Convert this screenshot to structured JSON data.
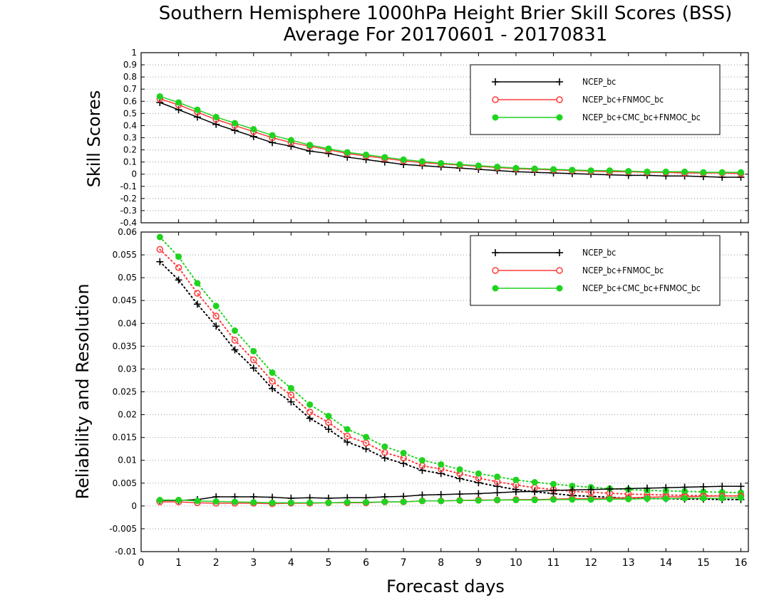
{
  "title_line1": "Southern Hemisphere 1000hPa Height Brier Skill Scores (BSS)",
  "title_line2": "Average For 20170601 - 20170831",
  "xlabel": "Forecast days",
  "chart_data": [
    {
      "type": "line",
      "ylabel": "Skill Scores",
      "xlim": [
        0,
        16.2
      ],
      "ylim": [
        -0.4,
        1
      ],
      "x_ticks": [
        0,
        1,
        2,
        3,
        4,
        5,
        6,
        7,
        8,
        9,
        10,
        11,
        12,
        13,
        14,
        15,
        16
      ],
      "y_ticks": [
        -0.4,
        -0.3,
        -0.2,
        -0.1,
        0,
        0.1,
        0.2,
        0.3,
        0.4,
        0.5,
        0.6,
        0.7,
        0.8,
        0.9,
        1
      ],
      "y_tick_labels": [
        "-0.4",
        "-0.3",
        "-0.2",
        "-0.1",
        "0",
        "0.1",
        "0.2",
        "0.3",
        "0.4",
        "0.5",
        "0.6",
        "0.7",
        "0.8",
        "0.9",
        "1"
      ],
      "grid": "horizontal dotted",
      "legend_position": "top-right",
      "x": [
        0.5,
        1,
        1.5,
        2,
        2.5,
        3,
        3.5,
        4,
        4.5,
        5,
        5.5,
        6,
        6.5,
        7,
        7.5,
        8,
        8.5,
        9,
        9.5,
        10,
        10.5,
        11,
        11.5,
        12,
        12.5,
        13,
        13.5,
        14,
        14.5,
        15,
        15.5,
        16
      ],
      "series": [
        {
          "name": "NCEP_bc",
          "color": "#000000",
          "marker": "plus",
          "line": "solid",
          "values": [
            0.59,
            0.53,
            0.47,
            0.41,
            0.36,
            0.31,
            0.26,
            0.23,
            0.19,
            0.17,
            0.14,
            0.12,
            0.1,
            0.08,
            0.07,
            0.06,
            0.05,
            0.04,
            0.03,
            0.02,
            0.015,
            0.01,
            0.005,
            0.0,
            -0.005,
            -0.01,
            -0.01,
            -0.015,
            -0.015,
            -0.02,
            -0.025,
            -0.025
          ]
        },
        {
          "name": "NCEP_bc+FNMOC_bc",
          "color": "#ff3a3a",
          "marker": "open-circle",
          "line": "solid",
          "values": [
            0.62,
            0.57,
            0.51,
            0.45,
            0.4,
            0.35,
            0.3,
            0.26,
            0.23,
            0.2,
            0.17,
            0.15,
            0.13,
            0.11,
            0.095,
            0.085,
            0.075,
            0.065,
            0.055,
            0.045,
            0.04,
            0.035,
            0.03,
            0.025,
            0.02,
            0.02,
            0.015,
            0.015,
            0.01,
            0.01,
            0.01,
            0.005
          ]
        },
        {
          "name": "NCEP_bc+CMC_bc+FNMOC_bc",
          "color": "#1fd31f",
          "marker": "filled-circle",
          "line": "solid",
          "values": [
            0.64,
            0.59,
            0.53,
            0.47,
            0.42,
            0.37,
            0.32,
            0.28,
            0.24,
            0.21,
            0.18,
            0.16,
            0.14,
            0.12,
            0.105,
            0.09,
            0.08,
            0.07,
            0.06,
            0.05,
            0.045,
            0.04,
            0.035,
            0.03,
            0.03,
            0.025,
            0.02,
            0.02,
            0.02,
            0.015,
            0.015,
            0.015
          ]
        }
      ]
    },
    {
      "type": "line",
      "ylabel": "Reliability and Resolution",
      "xlim": [
        0,
        16.2
      ],
      "ylim": [
        -0.01,
        0.06
      ],
      "x_ticks": [
        0,
        1,
        2,
        3,
        4,
        5,
        6,
        7,
        8,
        9,
        10,
        11,
        12,
        13,
        14,
        15,
        16
      ],
      "y_ticks": [
        -0.01,
        -0.005,
        0,
        0.005,
        0.01,
        0.015,
        0.02,
        0.025,
        0.03,
        0.035,
        0.04,
        0.045,
        0.05,
        0.055,
        0.06
      ],
      "y_tick_labels": [
        "-0.01",
        "-0.005",
        "0",
        "0.005",
        "0.01",
        "0.015",
        "0.02",
        "0.025",
        "0.03",
        "0.035",
        "0.04",
        "0.045",
        "0.05",
        "0.055",
        "0.06"
      ],
      "grid": "horizontal dotted",
      "legend_position": "top-right",
      "x": [
        0.5,
        1,
        1.5,
        2,
        2.5,
        3,
        3.5,
        4,
        4.5,
        5,
        5.5,
        6,
        6.5,
        7,
        7.5,
        8,
        8.5,
        9,
        9.5,
        10,
        10.5,
        11,
        11.5,
        12,
        12.5,
        13,
        13.5,
        14,
        14.5,
        15,
        15.5,
        16
      ],
      "series": [
        {
          "name": "NCEP_bc",
          "color": "#000000",
          "marker": "plus",
          "line": "dotted",
          "metric": "resolution",
          "values": [
            0.0535,
            0.0495,
            0.0442,
            0.0394,
            0.0342,
            0.0302,
            0.0257,
            0.0228,
            0.0192,
            0.0168,
            0.014,
            0.0125,
            0.0105,
            0.0093,
            0.0078,
            0.0071,
            0.006,
            0.0051,
            0.0043,
            0.0036,
            0.0031,
            0.0027,
            0.0023,
            0.0021,
            0.0019,
            0.0017,
            0.0016,
            0.0016,
            0.0015,
            0.0015,
            0.0014,
            0.0014
          ]
        },
        {
          "name": "NCEP_bc+FNMOC_bc",
          "color": "#ff3a3a",
          "marker": "open-circle",
          "line": "dotted",
          "metric": "resolution",
          "values": [
            0.0562,
            0.0522,
            0.0466,
            0.0416,
            0.0363,
            0.032,
            0.0273,
            0.0243,
            0.0206,
            0.0183,
            0.0153,
            0.0138,
            0.0117,
            0.0105,
            0.0088,
            0.0081,
            0.0071,
            0.0061,
            0.0053,
            0.0046,
            0.004,
            0.0036,
            0.0032,
            0.003,
            0.0028,
            0.0026,
            0.0025,
            0.0024,
            0.0023,
            0.0023,
            0.0022,
            0.0022
          ]
        },
        {
          "name": "NCEP_bc+CMC_bc+FNMOC_bc",
          "color": "#1fd31f",
          "marker": "filled-circle",
          "line": "dotted",
          "metric": "resolution",
          "values": [
            0.0589,
            0.0546,
            0.0488,
            0.0438,
            0.0384,
            0.0339,
            0.0292,
            0.0258,
            0.0222,
            0.0197,
            0.0168,
            0.0151,
            0.013,
            0.0116,
            0.01,
            0.0091,
            0.008,
            0.0071,
            0.0064,
            0.0057,
            0.0052,
            0.0048,
            0.0044,
            0.0041,
            0.0038,
            0.0036,
            0.0034,
            0.0033,
            0.0032,
            0.0031,
            0.003,
            0.0029
          ]
        },
        {
          "name": "NCEP_bc",
          "color": "#000000",
          "marker": "plus",
          "line": "solid",
          "metric": "reliability",
          "values": [
            0.0012,
            0.0012,
            0.0014,
            0.002,
            0.002,
            0.002,
            0.0019,
            0.0017,
            0.0018,
            0.0017,
            0.0018,
            0.0018,
            0.002,
            0.0021,
            0.0024,
            0.0025,
            0.0026,
            0.0027,
            0.0029,
            0.0031,
            0.0032,
            0.0034,
            0.0035,
            0.0036,
            0.0037,
            0.0038,
            0.0039,
            0.004,
            0.0041,
            0.0042,
            0.0043,
            0.0043
          ]
        },
        {
          "name": "NCEP_bc+FNMOC_bc",
          "color": "#ff3a3a",
          "marker": "open-circle",
          "line": "solid",
          "metric": "reliability",
          "values": [
            0.0009,
            0.0009,
            0.0007,
            0.0006,
            0.0006,
            0.0006,
            0.0005,
            0.0006,
            0.0006,
            0.0007,
            0.0007,
            0.0007,
            0.0009,
            0.0009,
            0.0011,
            0.0011,
            0.0012,
            0.0013,
            0.0013,
            0.0014,
            0.0014,
            0.0015,
            0.0016,
            0.0016,
            0.0017,
            0.0018,
            0.0019,
            0.002,
            0.002,
            0.0021,
            0.0022,
            0.0022
          ]
        },
        {
          "name": "NCEP_bc+CMC_bc+FNMOC_bc",
          "color": "#1fd31f",
          "marker": "filled-circle",
          "line": "solid",
          "metric": "reliability",
          "values": [
            0.0013,
            0.0013,
            0.0011,
            0.001,
            0.0009,
            0.0008,
            0.0007,
            0.0007,
            0.0007,
            0.0007,
            0.0008,
            0.0008,
            0.0009,
            0.0009,
            0.0011,
            0.0011,
            0.0012,
            0.0012,
            0.0013,
            0.0013,
            0.0013,
            0.0014,
            0.0014,
            0.0014,
            0.0015,
            0.0015,
            0.0016,
            0.0016,
            0.0017,
            0.0017,
            0.0017,
            0.0018
          ]
        }
      ]
    }
  ]
}
